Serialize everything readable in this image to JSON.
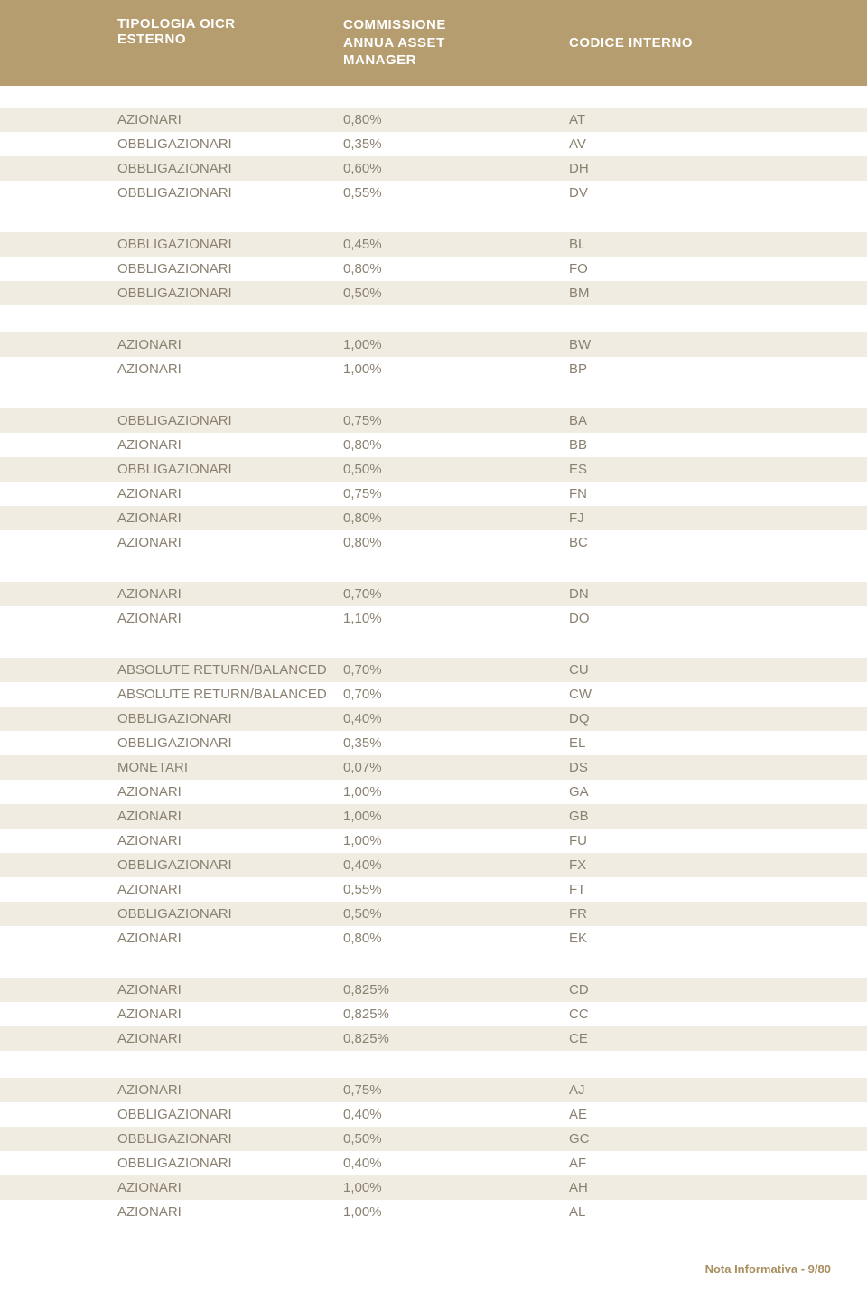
{
  "header": {
    "col1_line1": "TIPOLOGIA OICR",
    "col1_line2": "ESTERNO",
    "col2_line1": "COMMISSIONE",
    "col2_line2": "ANNUA ASSET",
    "col2_line3": "MANAGER",
    "col3": "CODICE INTERNO"
  },
  "colors": {
    "header_bg": "#b69d6f",
    "header_text": "#ffffff",
    "row_odd_bg": "#f0ece1",
    "row_even_bg": "#ffffff",
    "row_text": "#8a8070",
    "footer_text": "#a98f5f"
  },
  "typography": {
    "header_fontsize": 15,
    "row_fontsize": 15,
    "footer_fontsize": 13
  },
  "groups": [
    {
      "rows": [
        {
          "type": "AZIONARI",
          "comm": "0,80%",
          "code": "AT"
        },
        {
          "type": "OBBLIGAZIONARI",
          "comm": "0,35%",
          "code": "AV"
        },
        {
          "type": "OBBLIGAZIONARI",
          "comm": "0,60%",
          "code": "DH"
        },
        {
          "type": "OBBLIGAZIONARI",
          "comm": "0,55%",
          "code": "DV"
        }
      ]
    },
    {
      "rows": [
        {
          "type": "OBBLIGAZIONARI",
          "comm": "0,45%",
          "code": "BL"
        },
        {
          "type": "OBBLIGAZIONARI",
          "comm": "0,80%",
          "code": "FO"
        },
        {
          "type": "OBBLIGAZIONARI",
          "comm": "0,50%",
          "code": "BM"
        }
      ]
    },
    {
      "rows": [
        {
          "type": "AZIONARI",
          "comm": "1,00%",
          "code": "BW"
        },
        {
          "type": "AZIONARI",
          "comm": "1,00%",
          "code": "BP"
        }
      ]
    },
    {
      "rows": [
        {
          "type": "OBBLIGAZIONARI",
          "comm": "0,75%",
          "code": "BA"
        },
        {
          "type": "AZIONARI",
          "comm": "0,80%",
          "code": "BB"
        },
        {
          "type": "OBBLIGAZIONARI",
          "comm": "0,50%",
          "code": "ES"
        },
        {
          "type": "AZIONARI",
          "comm": "0,75%",
          "code": "FN"
        },
        {
          "type": "AZIONARI",
          "comm": "0,80%",
          "code": "FJ"
        },
        {
          "type": "AZIONARI",
          "comm": "0,80%",
          "code": "BC"
        }
      ]
    },
    {
      "rows": [
        {
          "type": "AZIONARI",
          "comm": "0,70%",
          "code": "DN"
        },
        {
          "type": "AZIONARI",
          "comm": "1,10%",
          "code": "DO"
        }
      ]
    },
    {
      "rows": [
        {
          "type": "ABSOLUTE RETURN/BALANCED",
          "comm": "0,70%",
          "code": "CU"
        },
        {
          "type": "ABSOLUTE RETURN/BALANCED",
          "comm": "0,70%",
          "code": "CW"
        },
        {
          "type": "OBBLIGAZIONARI",
          "comm": "0,40%",
          "code": "DQ"
        },
        {
          "type": "OBBLIGAZIONARI",
          "comm": "0,35%",
          "code": "EL"
        },
        {
          "type": "MONETARI",
          "comm": "0,07%",
          "code": "DS"
        },
        {
          "type": "AZIONARI",
          "comm": "1,00%",
          "code": "GA"
        },
        {
          "type": "AZIONARI",
          "comm": "1,00%",
          "code": "GB"
        },
        {
          "type": "AZIONARI",
          "comm": "1,00%",
          "code": "FU"
        },
        {
          "type": "OBBLIGAZIONARI",
          "comm": "0,40%",
          "code": "FX"
        },
        {
          "type": "AZIONARI",
          "comm": "0,55%",
          "code": "FT"
        },
        {
          "type": "OBBLIGAZIONARI",
          "comm": "0,50%",
          "code": "FR"
        },
        {
          "type": "AZIONARI",
          "comm": "0,80%",
          "code": "EK"
        }
      ]
    },
    {
      "rows": [
        {
          "type": "AZIONARI",
          "comm": "0,825%",
          "code": "CD"
        },
        {
          "type": "AZIONARI",
          "comm": "0,825%",
          "code": "CC"
        },
        {
          "type": "AZIONARI",
          "comm": "0,825%",
          "code": "CE"
        }
      ]
    },
    {
      "rows": [
        {
          "type": "AZIONARI",
          "comm": "0,75%",
          "code": "AJ"
        },
        {
          "type": "OBBLIGAZIONARI",
          "comm": "0,40%",
          "code": "AE"
        },
        {
          "type": "OBBLIGAZIONARI",
          "comm": "0,50%",
          "code": "GC"
        },
        {
          "type": "OBBLIGAZIONARI",
          "comm": "0,40%",
          "code": "AF"
        },
        {
          "type": "AZIONARI",
          "comm": "1,00%",
          "code": "AH"
        },
        {
          "type": "AZIONARI",
          "comm": "1,00%",
          "code": "AL"
        }
      ]
    }
  ],
  "footer": "Nota Informativa - 9/80"
}
